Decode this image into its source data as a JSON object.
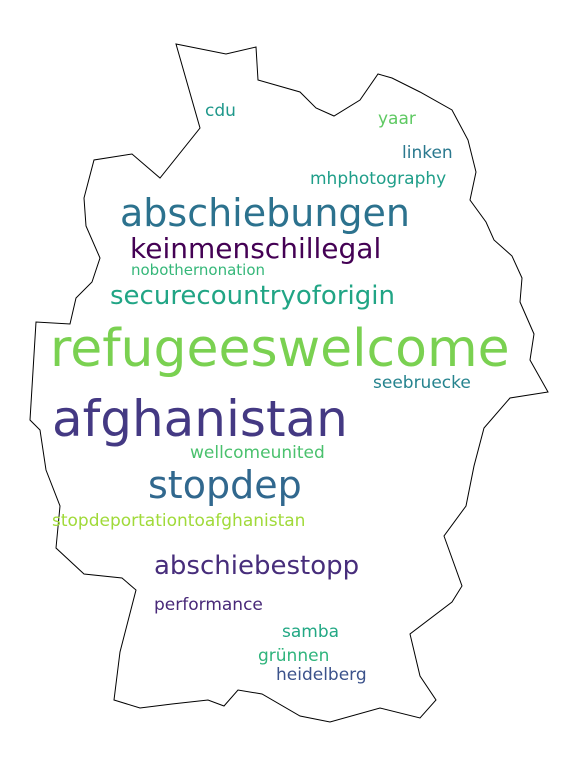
{
  "words": [
    {
      "text": "refugeeswelcome",
      "color": "#7ad151"
    },
    {
      "text": "afghanistan",
      "color": "#443983"
    },
    {
      "text": "abschiebungen",
      "color": "#2c728e"
    },
    {
      "text": "stopdep",
      "color": "#31688e"
    },
    {
      "text": "keinmenschillegal",
      "color": "#440154"
    },
    {
      "text": "securecountryoforigin",
      "color": "#21a585"
    },
    {
      "text": "abschiebestopp",
      "color": "#472d7b"
    },
    {
      "text": "mhphotography",
      "color": "#1f9e89"
    },
    {
      "text": "stopdeportationtoafghanistan",
      "color": "#a0da39"
    },
    {
      "text": "linken",
      "color": "#2a788e"
    },
    {
      "text": "cdu",
      "color": "#1f988b"
    },
    {
      "text": "yaar",
      "color": "#5ec962"
    },
    {
      "text": "nobothernonation",
      "color": "#35b779"
    },
    {
      "text": "seebruecke",
      "color": "#25838e"
    },
    {
      "text": "wellcomeunited",
      "color": "#4ac16d"
    },
    {
      "text": "performance",
      "color": "#482878"
    },
    {
      "text": "samba",
      "color": "#22a884"
    },
    {
      "text": "grünnen",
      "color": "#2fb47c"
    },
    {
      "text": "heidelberg",
      "color": "#3b528b"
    }
  ]
}
